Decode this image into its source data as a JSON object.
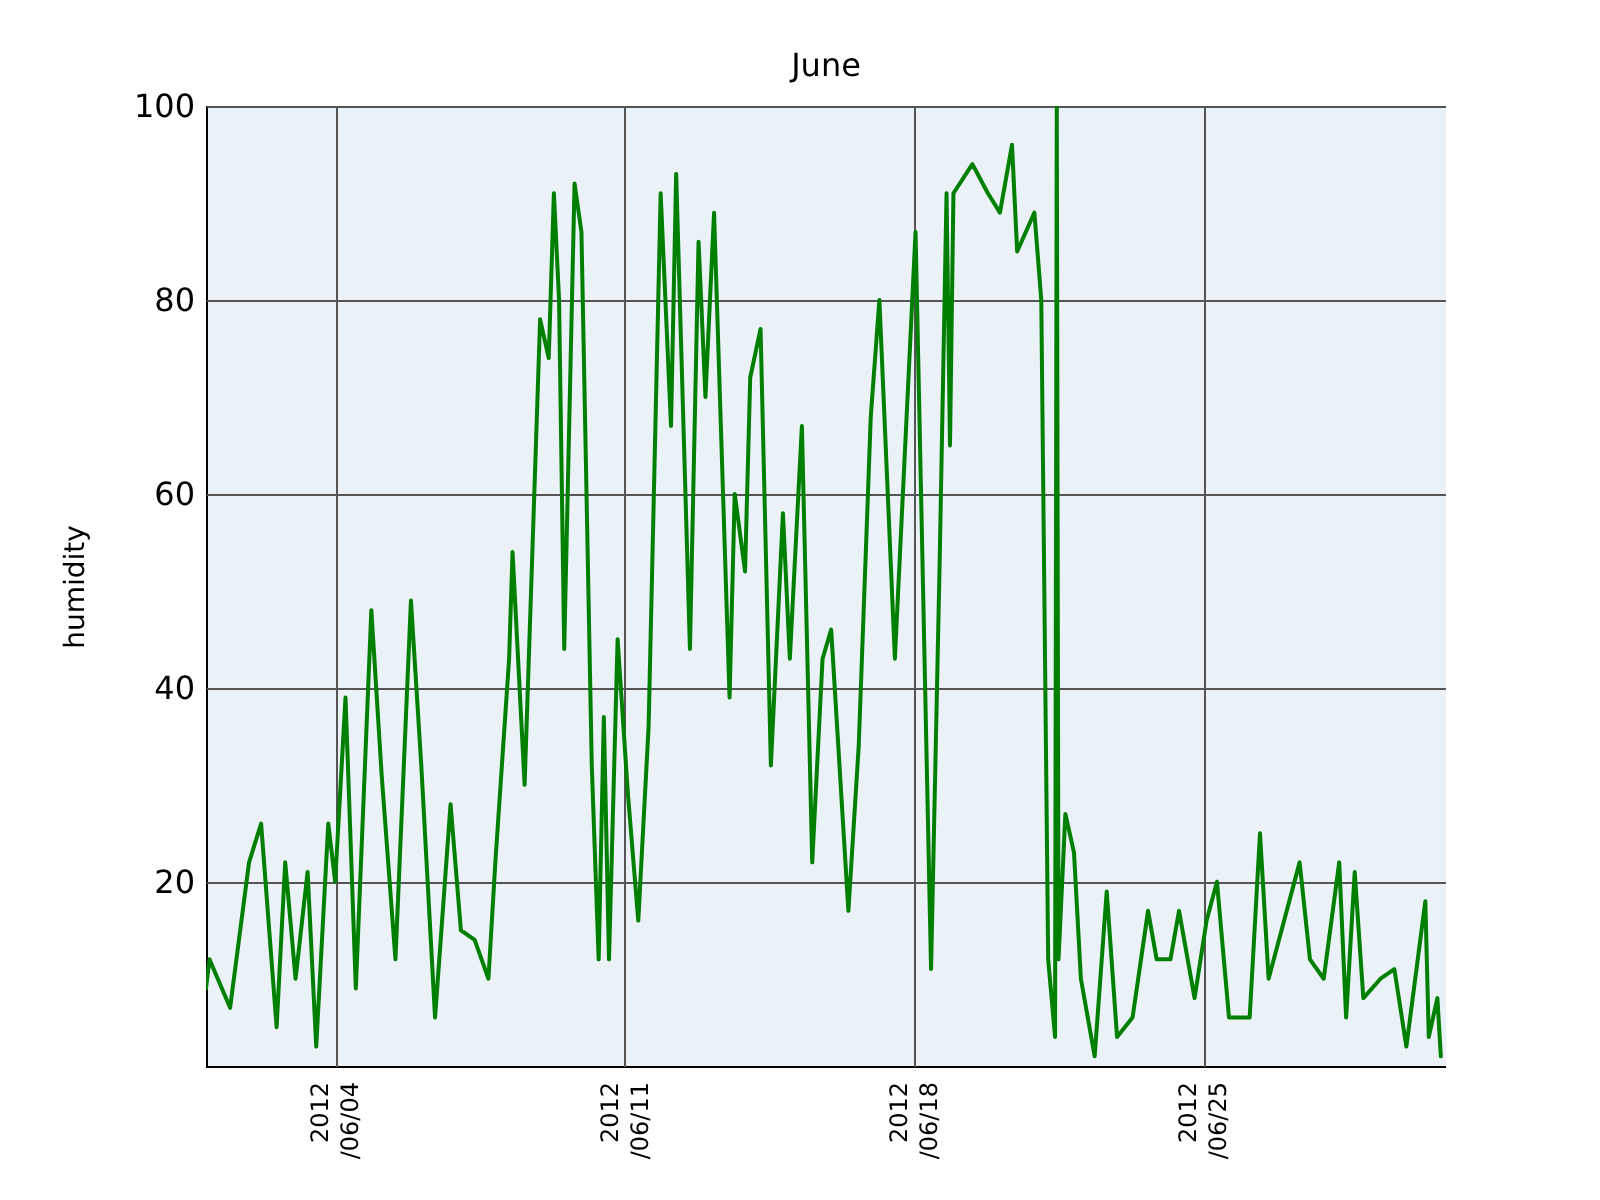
{
  "chart_data": {
    "type": "line",
    "title": "June",
    "ylabel": "humidity",
    "x": [
      "2012-05-31T21:00",
      "2012-05-31T23:00",
      "2012-06-01T11:00",
      "2012-06-01T22:00",
      "2012-06-02T05:00",
      "2012-06-02T14:00",
      "2012-06-02T19:00",
      "2012-06-03T01:00",
      "2012-06-03T08:00",
      "2012-06-03T13:00",
      "2012-06-03T20:00",
      "2012-06-04T00:00",
      "2012-06-04T06:00",
      "2012-06-04T12:00",
      "2012-06-04T21:00",
      "2012-06-05T03:00",
      "2012-06-05T11:00",
      "2012-06-05T20:00",
      "2012-06-06T02:00",
      "2012-06-06T10:00",
      "2012-06-06T19:00",
      "2012-06-07T01:00",
      "2012-06-07T09:00",
      "2012-06-07T17:00",
      "2012-06-07T21:00",
      "2012-06-08T05:00",
      "2012-06-08T07:00",
      "2012-06-08T14:00",
      "2012-06-08T20:00",
      "2012-06-08T23:00",
      "2012-06-09T04:00",
      "2012-06-09T07:00",
      "2012-06-09T10:00",
      "2012-06-09T13:00",
      "2012-06-09T19:00",
      "2012-06-09T23:00",
      "2012-06-10T05:00",
      "2012-06-10T09:00",
      "2012-06-10T12:00",
      "2012-06-10T15:00",
      "2012-06-10T20:00",
      "2012-06-11T02:00",
      "2012-06-11T08:00",
      "2012-06-11T14:00",
      "2012-06-11T21:00",
      "2012-06-12T03:00",
      "2012-06-12T06:00",
      "2012-06-12T14:00",
      "2012-06-12T19:00",
      "2012-06-12T23:00",
      "2012-06-13T04:00",
      "2012-06-13T13:00",
      "2012-06-13T16:00",
      "2012-06-13T22:00",
      "2012-06-14T01:00",
      "2012-06-14T07:00",
      "2012-06-14T13:00",
      "2012-06-14T20:00",
      "2012-06-15T00:00",
      "2012-06-15T07:00",
      "2012-06-15T13:00",
      "2012-06-15T19:00",
      "2012-06-16T00:00",
      "2012-06-16T10:00",
      "2012-06-16T16:00",
      "2012-06-16T23:00",
      "2012-06-17T04:00",
      "2012-06-17T13:00",
      "2012-06-18T01:00",
      "2012-06-18T10:00",
      "2012-06-18T15:00",
      "2012-06-18T19:00",
      "2012-06-18T21:00",
      "2012-06-18T23:00",
      "2012-06-19T10:00",
      "2012-06-19T19:00",
      "2012-06-20T02:00",
      "2012-06-20T09:00",
      "2012-06-20T12:00",
      "2012-06-20T22:00",
      "2012-06-21T02:00",
      "2012-06-21T06:00",
      "2012-06-21T10:00",
      "2012-06-21T11:00",
      "2012-06-21T12:00",
      "2012-06-21T16:00",
      "2012-06-21T21:00",
      "2012-06-22T01:00",
      "2012-06-22T09:00",
      "2012-06-22T16:00",
      "2012-06-22T22:00",
      "2012-06-23T07:00",
      "2012-06-23T16:00",
      "2012-06-23T21:00",
      "2012-06-24T05:00",
      "2012-06-24T10:00",
      "2012-06-24T19:00",
      "2012-06-25T02:00",
      "2012-06-25T08:00",
      "2012-06-25T15:00",
      "2012-06-26T03:00",
      "2012-06-26T09:00",
      "2012-06-26T14:00",
      "2012-06-26T20:00",
      "2012-06-27T08:00",
      "2012-06-27T14:00",
      "2012-06-27T22:00",
      "2012-06-28T07:00",
      "2012-06-28T11:00",
      "2012-06-28T16:00",
      "2012-06-28T21:00",
      "2012-06-29T07:00",
      "2012-06-29T15:00",
      "2012-06-29T22:00",
      "2012-06-30T09:00",
      "2012-06-30T11:00",
      "2012-06-30T16:00",
      "2012-06-30T18:00"
    ],
    "series": [
      {
        "color": "#007f00",
        "values": [
          9,
          12,
          7,
          22,
          26,
          5,
          22,
          10,
          21,
          3,
          26,
          20,
          39,
          9,
          48,
          31,
          12,
          49,
          32,
          6,
          28,
          15,
          14,
          10,
          22,
          43,
          54,
          30,
          62,
          78,
          74,
          91,
          80,
          44,
          92,
          87,
          32,
          12,
          37,
          12,
          45,
          29,
          16,
          36,
          91,
          67,
          93,
          44,
          86,
          70,
          89,
          39,
          60,
          52,
          72,
          77,
          32,
          58,
          43,
          67,
          22,
          43,
          46,
          17,
          34,
          68,
          80,
          43,
          87,
          11,
          53,
          91,
          65,
          91,
          94,
          91,
          89,
          96,
          85,
          89,
          80,
          12,
          4,
          100,
          12,
          27,
          23,
          10,
          2,
          19,
          4,
          6,
          17,
          12,
          12,
          17,
          8,
          16,
          20,
          6,
          6,
          25,
          10,
          14,
          22,
          12,
          10,
          22,
          6,
          21,
          8,
          10,
          11,
          3,
          18,
          4,
          8,
          2
        ]
      }
    ],
    "xlim": [
      "2012-05-31T21:00",
      "2012-06-30T21:00"
    ],
    "xticks": [
      {
        "value": "2012-06-04",
        "label": "2012\n/06/04"
      },
      {
        "value": "2012-06-11",
        "label": "2012\n/06/11"
      },
      {
        "value": "2012-06-18",
        "label": "2012\n/06/18"
      },
      {
        "value": "2012-06-25",
        "label": "2012\n/06/25"
      }
    ],
    "ylim": [
      1,
      100
    ],
    "yticks": [
      20,
      40,
      60,
      80,
      100
    ],
    "grid": true,
    "legend": false,
    "marker": "none",
    "line_style": "solid"
  }
}
